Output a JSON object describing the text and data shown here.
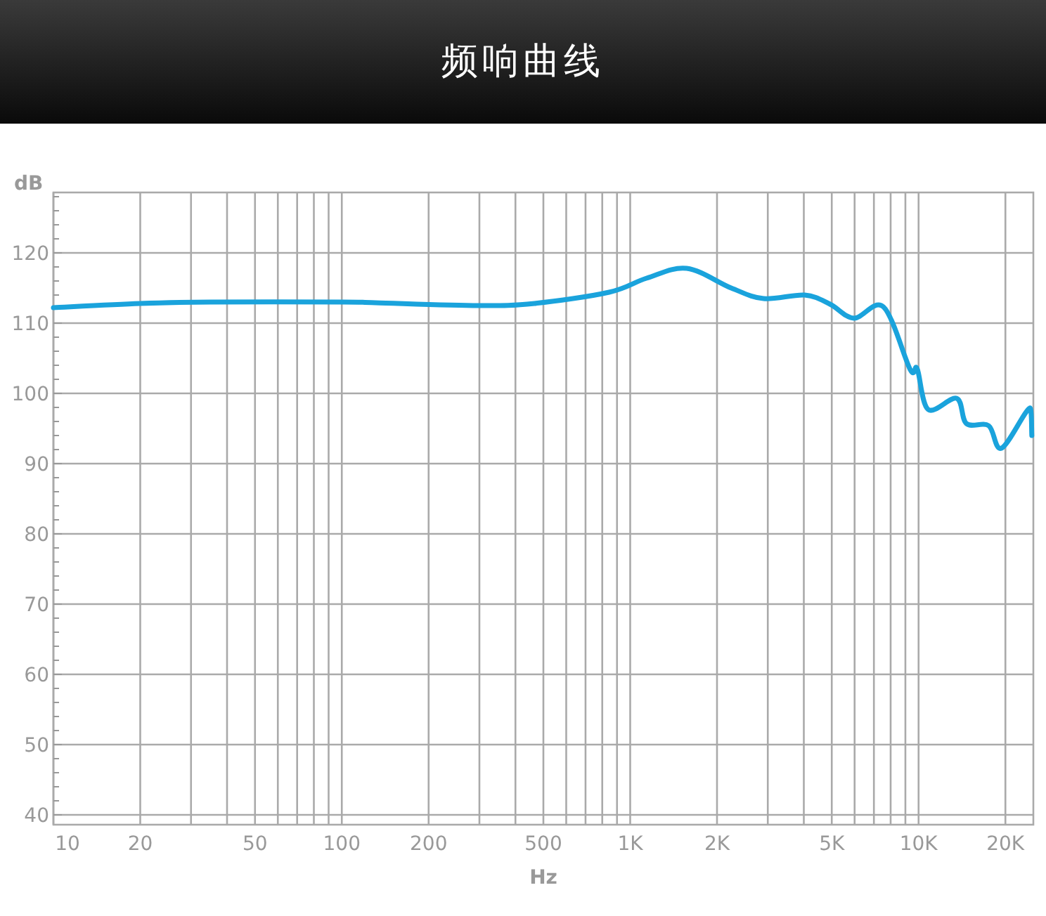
{
  "chart_data": {
    "type": "line",
    "title": "频响曲线",
    "xlabel": "Hz",
    "ylabel": "dB",
    "log": "x",
    "grid": true,
    "marker": "none",
    "line_style": "solid",
    "xlim": [
      10,
      25000
    ],
    "ylim": [
      38.6,
      128.6
    ],
    "xticks": [
      10,
      20,
      {
        "value": 30,
        "label": null
      },
      {
        "value": 40,
        "label": null
      },
      50,
      {
        "value": 60,
        "label": null
      },
      {
        "value": 70,
        "label": null
      },
      {
        "value": 80,
        "label": null
      },
      {
        "value": 90,
        "label": null
      },
      100,
      200,
      {
        "value": 300,
        "label": null
      },
      {
        "value": 400,
        "label": null
      },
      500,
      {
        "value": 600,
        "label": null
      },
      {
        "value": 700,
        "label": null
      },
      {
        "value": 800,
        "label": null
      },
      {
        "value": 900,
        "label": null
      },
      {
        "value": 1000,
        "label": "1K"
      },
      {
        "value": 2000,
        "label": "2K"
      },
      {
        "value": 3000,
        "label": null
      },
      {
        "value": 4000,
        "label": null
      },
      {
        "value": 5000,
        "label": "5K"
      },
      {
        "value": 6000,
        "label": null
      },
      {
        "value": 7000,
        "label": null
      },
      {
        "value": 8000,
        "label": null
      },
      {
        "value": 9000,
        "label": null
      },
      {
        "value": 10000,
        "label": "10K"
      },
      {
        "value": 20000,
        "label": "20K"
      }
    ],
    "yticks": [
      40,
      {
        "value": 42,
        "label": null
      },
      {
        "value": 44,
        "label": null
      },
      {
        "value": 46,
        "label": null
      },
      {
        "value": 48,
        "label": null
      },
      50,
      {
        "value": 52,
        "label": null
      },
      {
        "value": 54,
        "label": null
      },
      {
        "value": 56,
        "label": null
      },
      {
        "value": 58,
        "label": null
      },
      60,
      {
        "value": 62,
        "label": null
      },
      {
        "value": 64,
        "label": null
      },
      {
        "value": 66,
        "label": null
      },
      {
        "value": 68,
        "label": null
      },
      70,
      {
        "value": 72,
        "label": null
      },
      {
        "value": 74,
        "label": null
      },
      {
        "value": 76,
        "label": null
      },
      {
        "value": 78,
        "label": null
      },
      80,
      {
        "value": 82,
        "label": null
      },
      {
        "value": 84,
        "label": null
      },
      {
        "value": 86,
        "label": null
      },
      {
        "value": 88,
        "label": null
      },
      90,
      {
        "value": 92,
        "label": null
      },
      {
        "value": 94,
        "label": null
      },
      {
        "value": 96,
        "label": null
      },
      {
        "value": 98,
        "label": null
      },
      100,
      {
        "value": 102,
        "label": null
      },
      {
        "value": 104,
        "label": null
      },
      {
        "value": 106,
        "label": null
      },
      {
        "value": 108,
        "label": null
      },
      110,
      {
        "value": 112,
        "label": null
      },
      {
        "value": 114,
        "label": null
      },
      {
        "value": 116,
        "label": null
      },
      {
        "value": 118,
        "label": null
      },
      120,
      {
        "value": 122,
        "label": null
      },
      {
        "value": 124,
        "label": null
      },
      {
        "value": 126,
        "label": null
      },
      {
        "value": 128,
        "label": null
      }
    ],
    "series": [
      {
        "color": "#1aa3dc",
        "x": [
          10,
          20,
          35,
          102,
          131,
          297,
          466,
          845,
          1140,
          1570,
          2240,
          2900,
          4030,
          4930,
          5970,
          7560,
          9350,
          9890,
          10800,
          13550,
          14650,
          17500,
          19400,
          24300,
          24700
        ],
        "values": [
          112.2,
          112.8,
          113,
          113,
          112.9,
          112.5,
          112.8,
          114.4,
          116.4,
          117.8,
          115,
          113.5,
          114,
          112.7,
          110.7,
          112.3,
          103.4,
          103.5,
          97.7,
          99.3,
          95.7,
          95.4,
          92.2,
          97.9,
          94
        ]
      }
    ]
  }
}
